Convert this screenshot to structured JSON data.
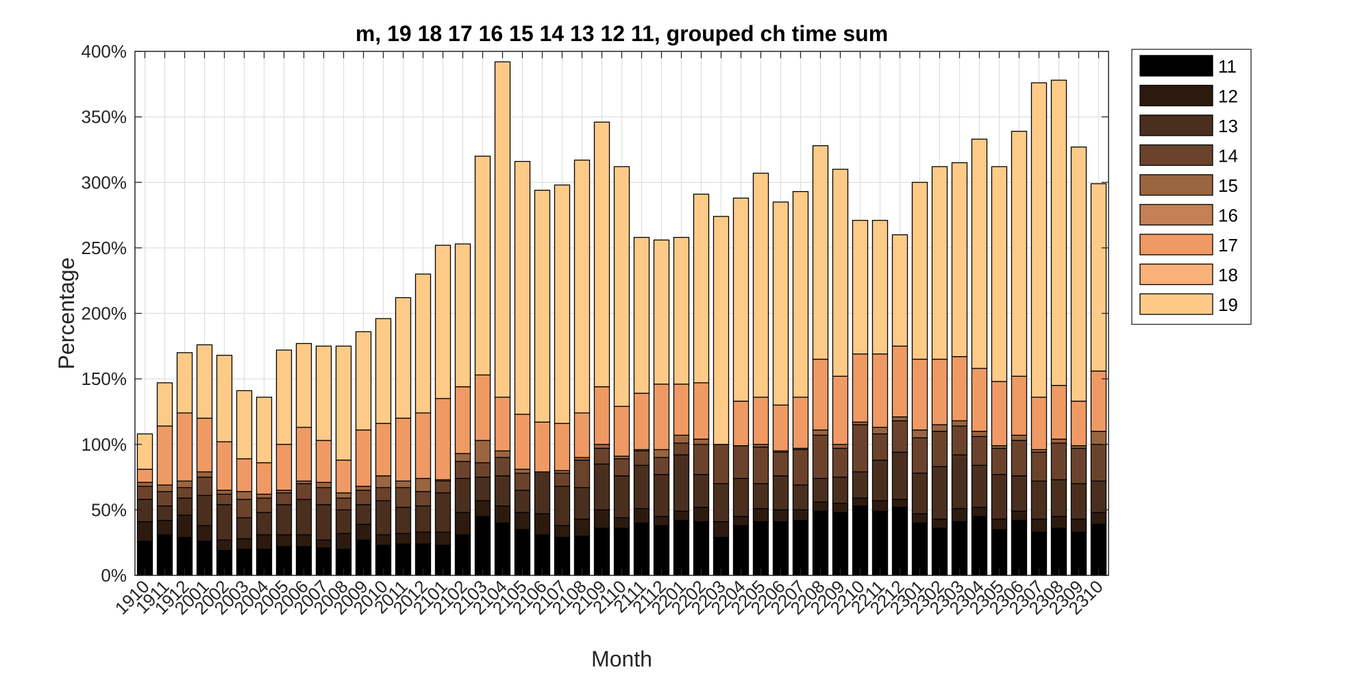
{
  "chart_data": {
    "type": "bar",
    "stacked": true,
    "title": "m, 19 18 17 16 15 14 13 12 11, grouped ch time sum",
    "xlabel": "Month",
    "ylabel": "Percentage",
    "ylim": [
      0,
      400
    ],
    "yticks": [
      "0%",
      "50%",
      "100%",
      "150%",
      "200%",
      "250%",
      "300%",
      "350%",
      "400%"
    ],
    "ytick_values": [
      0,
      50,
      100,
      150,
      200,
      250,
      300,
      350,
      400
    ],
    "grid": true,
    "legend_position": "outside-top-right",
    "categories": [
      "1910",
      "1911",
      "1912",
      "2001",
      "2002",
      "2003",
      "2004",
      "2005",
      "2006",
      "2007",
      "2008",
      "2009",
      "2010",
      "2011",
      "2012",
      "2101",
      "2102",
      "2103",
      "2104",
      "2105",
      "2106",
      "2107",
      "2108",
      "2109",
      "2110",
      "2111",
      "2112",
      "2201",
      "2202",
      "2203",
      "2204",
      "2205",
      "2206",
      "2207",
      "2208",
      "2209",
      "2210",
      "2211",
      "2212",
      "2301",
      "2302",
      "2303",
      "2304",
      "2305",
      "2306",
      "2307",
      "2308",
      "2309",
      "2310"
    ],
    "series": [
      {
        "name": "11",
        "color": "#000000",
        "values": [
          26,
          31,
          29,
          26,
          19,
          20,
          20,
          22,
          22,
          21,
          20,
          27,
          23,
          24,
          24,
          23,
          31,
          45,
          40,
          35,
          31,
          29,
          30,
          36,
          36,
          40,
          38,
          42,
          41,
          29,
          38,
          41,
          41,
          42,
          49,
          48,
          53,
          49,
          52,
          40,
          36,
          41,
          45,
          35,
          42,
          33,
          36,
          33,
          39
        ]
      },
      {
        "name": "12",
        "color": "#2d1a0f",
        "values": [
          15,
          11,
          17,
          12,
          8,
          8,
          11,
          9,
          9,
          6,
          12,
          12,
          8,
          8,
          9,
          10,
          17,
          12,
          13,
          13,
          16,
          9,
          13,
          14,
          8,
          11,
          7,
          7,
          11,
          12,
          7,
          10,
          9,
          8,
          7,
          7,
          6,
          8,
          6,
          7,
          7,
          10,
          7,
          8,
          7,
          10,
          9,
          10,
          9
        ]
      },
      {
        "name": "13",
        "color": "#4a2f1f",
        "values": [
          17,
          11,
          13,
          23,
          27,
          16,
          17,
          23,
          27,
          27,
          18,
          15,
          26,
          20,
          20,
          30,
          26,
          18,
          23,
          17,
          32,
          30,
          24,
          35,
          32,
          33,
          32,
          43,
          25,
          29,
          29,
          19,
          26,
          19,
          18,
          20,
          20,
          31,
          36,
          31,
          40,
          41,
          32,
          34,
          27,
          29,
          28,
          27,
          24
        ]
      },
      {
        "name": "14",
        "color": "#6b432c",
        "values": [
          10,
          11,
          8,
          14,
          8,
          14,
          11,
          9,
          12,
          13,
          9,
          11,
          10,
          15,
          11,
          9,
          13,
          11,
          14,
          13,
          0,
          10,
          21,
          12,
          13,
          11,
          13,
          9,
          23,
          30,
          25,
          28,
          18,
          27,
          33,
          22,
          36,
          20,
          24,
          27,
          27,
          22,
          22,
          20,
          27,
          22,
          28,
          27,
          28
        ]
      },
      {
        "name": "15",
        "color": "#9a6541",
        "values": [
          3,
          5,
          5,
          4,
          3,
          6,
          3,
          2,
          2,
          4,
          4,
          3,
          9,
          5,
          10,
          1,
          6,
          17,
          5,
          3,
          0,
          2,
          2,
          3,
          2,
          1,
          6,
          6,
          4,
          0,
          0,
          2,
          1,
          1,
          4,
          3,
          2,
          5,
          3,
          6,
          5,
          4,
          4,
          2,
          4,
          2,
          3,
          2,
          10
        ]
      },
      {
        "name": "16",
        "color": "#c38155",
        "values": [
          0,
          0,
          0,
          0,
          0,
          0,
          0,
          0,
          0,
          0,
          0,
          0,
          0,
          0,
          0,
          0,
          0,
          0,
          0,
          0,
          0,
          0,
          0,
          0,
          0,
          0,
          0,
          0,
          0,
          0,
          0,
          0,
          0,
          0,
          0,
          0,
          0,
          0,
          0,
          0,
          0,
          0,
          0,
          0,
          0,
          0,
          0,
          0,
          0
        ]
      },
      {
        "name": "17",
        "color": "#ef9a64",
        "values": [
          10,
          45,
          52,
          41,
          37,
          25,
          24,
          35,
          41,
          32,
          25,
          43,
          40,
          48,
          50,
          62,
          51,
          50,
          41,
          42,
          38,
          36,
          34,
          44,
          38,
          43,
          50,
          39,
          43,
          0,
          34,
          36,
          35,
          39,
          54,
          52,
          52,
          56,
          54,
          54,
          50,
          49,
          48,
          49,
          45,
          40,
          41,
          34,
          46
        ]
      },
      {
        "name": "18",
        "color": "#f9b17a",
        "values": [
          0,
          0,
          0,
          0,
          0,
          0,
          0,
          0,
          0,
          0,
          0,
          0,
          0,
          0,
          0,
          0,
          0,
          0,
          0,
          0,
          0,
          0,
          0,
          0,
          0,
          0,
          0,
          0,
          0,
          0,
          0,
          0,
          0,
          0,
          0,
          0,
          0,
          0,
          0,
          0,
          0,
          0,
          0,
          0,
          0,
          0,
          0,
          0,
          0
        ]
      },
      {
        "name": "19",
        "color": "#fdcb87",
        "values": [
          27,
          33,
          46,
          56,
          66,
          52,
          50,
          72,
          64,
          72,
          87,
          75,
          80,
          92,
          106,
          117,
          109,
          167,
          256,
          193,
          177,
          182,
          193,
          202,
          183,
          119,
          110,
          112,
          144,
          174,
          155,
          171,
          155,
          157,
          163,
          158,
          102,
          102,
          85,
          135,
          147,
          148,
          175,
          164,
          187,
          240,
          233,
          194,
          143
        ]
      }
    ]
  }
}
